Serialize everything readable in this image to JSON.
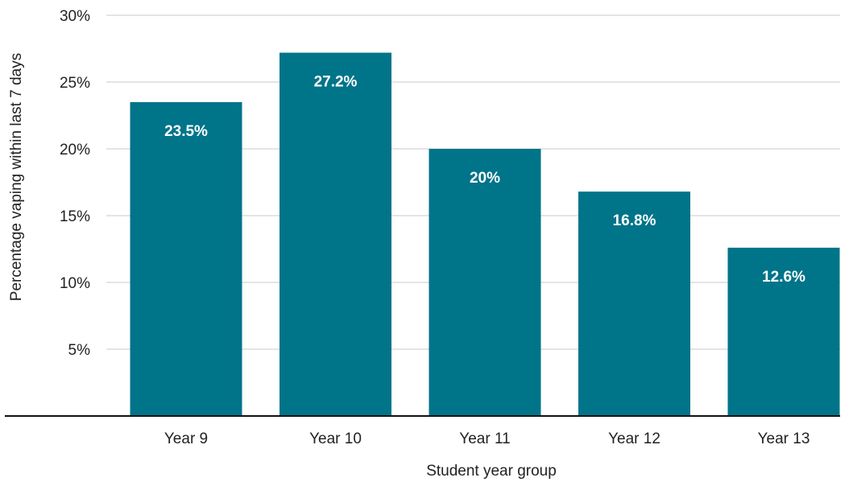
{
  "chart_data": {
    "type": "bar",
    "title": "",
    "xlabel": "Student year group",
    "ylabel": "Percentage vaping within last 7 days",
    "categories": [
      "Year 9",
      "Year 10",
      "Year 11",
      "Year 12",
      "Year 13"
    ],
    "values": [
      23.5,
      27.2,
      20,
      16.8,
      12.6
    ],
    "data_labels": [
      "23.5%",
      "27.2%",
      "20%",
      "16.8%",
      "12.6%"
    ],
    "ylim": [
      0,
      30
    ],
    "yticks": [
      5,
      10,
      15,
      20,
      25,
      30
    ],
    "ytick_labels": [
      "5%",
      "10%",
      "15%",
      "20%",
      "25%",
      "30%"
    ],
    "grid": true,
    "bar_color": "#007489",
    "data_label_color": "#ffffff"
  }
}
